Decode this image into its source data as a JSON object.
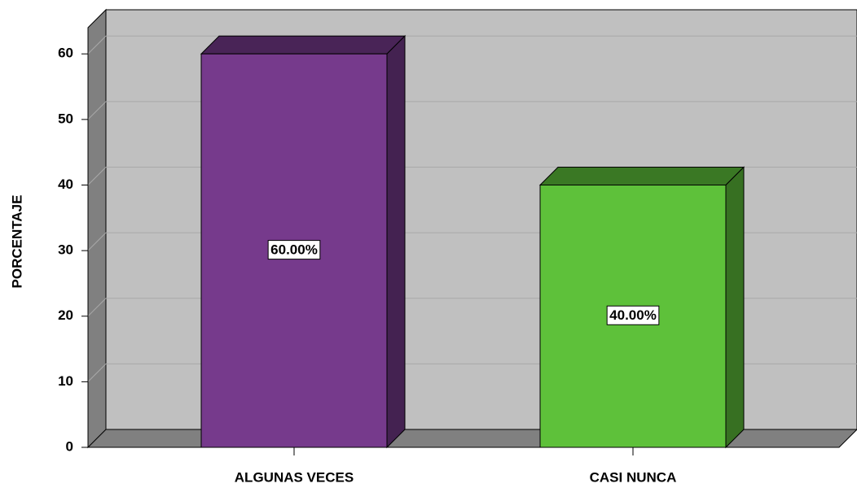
{
  "chart_data": {
    "type": "bar3d",
    "y_label": "PORCENTAJE",
    "categories": [
      "ALGUNAS VECES",
      "CASI NUNCA"
    ],
    "values": [
      60,
      40
    ],
    "value_labels": [
      "60.00%",
      "40.00%"
    ],
    "colors": [
      "#763a8c",
      "#5ec13a"
    ],
    "ylim": [
      0,
      64
    ],
    "yticks": [
      0,
      10,
      20,
      30,
      40,
      50,
      60
    ],
    "grid": true
  }
}
